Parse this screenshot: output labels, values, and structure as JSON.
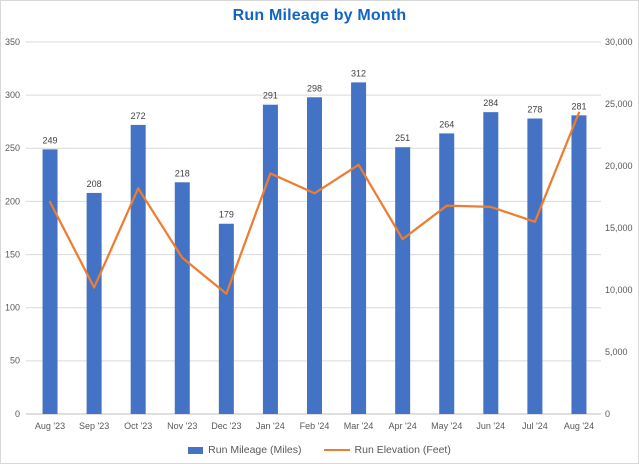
{
  "colors": {
    "title": "#1065c6",
    "bar": "#4472c4",
    "line": "#ed7d31",
    "gridline": "#d9d9d9",
    "axis_line": "#bfbfbf",
    "tick_text": "#595959",
    "category_text": "#595959",
    "data_label": "#404040",
    "legend_text": "#595959",
    "frame_border": "#d8d8d8",
    "background": "#ffffff"
  },
  "chart_data": {
    "type": "combo-bar-line",
    "title": "Run Mileage by Month",
    "categories": [
      "Aug '23",
      "Sep '23",
      "Oct '23",
      "Nov '23",
      "Dec '23",
      "Jan '24",
      "Feb '24",
      "Mar '24",
      "Apr '24",
      "May '24",
      "Jun '24",
      "Jul '24",
      "Aug '24"
    ],
    "series": [
      {
        "name": "Run Mileage (Miles)",
        "type": "bar",
        "axis": "left",
        "color": "#4472c4",
        "data_labels": true,
        "values": [
          249,
          208,
          272,
          218,
          179,
          291,
          298,
          312,
          251,
          264,
          284,
          278,
          281
        ]
      },
      {
        "name": "Run Elevation (Feet)",
        "type": "line",
        "axis": "right",
        "color": "#ed7d31",
        "data_labels": false,
        "values": [
          17100,
          10200,
          18200,
          12600,
          9700,
          19400,
          17800,
          20100,
          14100,
          16800,
          16700,
          15500,
          24300
        ]
      }
    ],
    "left_axis": {
      "min": 0,
      "max": 350,
      "step": 50,
      "tick_labels": [
        "0",
        "50",
        "100",
        "150",
        "200",
        "250",
        "300",
        "350"
      ]
    },
    "right_axis": {
      "min": 0,
      "max": 30000,
      "step": 5000,
      "tick_labels": [
        "0",
        "5,000",
        "10,000",
        "15,000",
        "20,000",
        "25,000",
        "30,000"
      ]
    },
    "grid": true,
    "legend_position": "bottom"
  }
}
